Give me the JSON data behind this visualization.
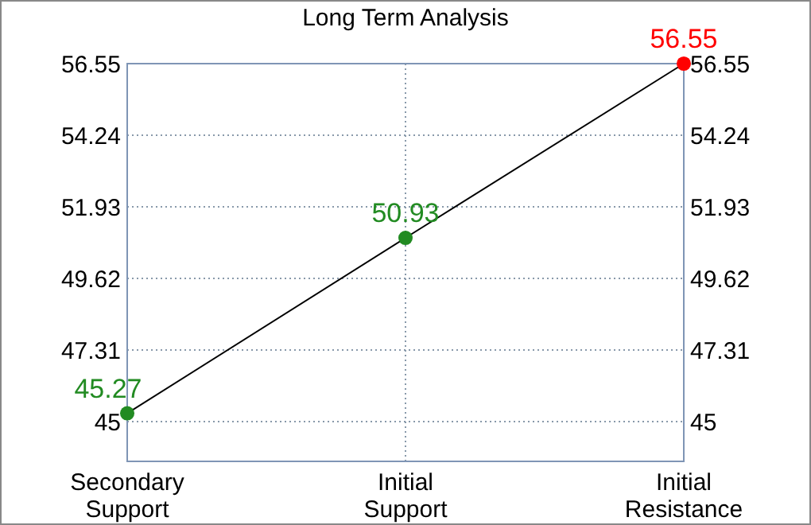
{
  "chart_data": {
    "type": "line",
    "title": "Long Term Analysis",
    "categories": [
      "Secondary\nSupport",
      "Initial\nSupport",
      "Initial\nResistance"
    ],
    "series": [
      {
        "values": [
          45.27,
          50.93,
          56.55
        ],
        "color": "#000000",
        "colors": [
          "#228b22",
          "#228b22",
          "#ff0000"
        ]
      }
    ],
    "ylim": [
      43.72,
      56.55
    ],
    "yticks": [
      45,
      47.31,
      49.62,
      51.93,
      54.24,
      56.55
    ],
    "y2lim": [
      43.72,
      56.55
    ],
    "y2ticks": [
      45,
      47.31,
      49.62,
      51.93,
      54.24,
      56.55
    ],
    "grid": true,
    "marker": "circle",
    "data_labels": true
  }
}
